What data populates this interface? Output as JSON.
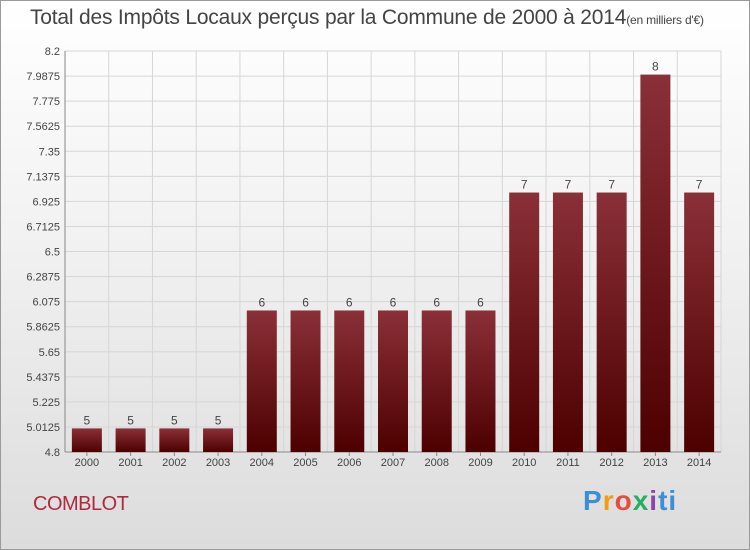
{
  "title": "Total des Impôts Locaux perçus par la Commune de 2000 à 2014",
  "title_unit": "(en milliers d'€)",
  "commune": "COMBLOT",
  "logo": [
    "P",
    "r",
    "o",
    "x",
    "i",
    "ti"
  ],
  "colors": {
    "bar_top": "#8a3038",
    "bar_bottom": "#4d0000",
    "text": "#444444",
    "commune": "#b02a3e"
  },
  "chart_data": {
    "type": "bar",
    "title": "Total des Impôts Locaux perçus par la Commune de 2000 à 2014",
    "ylabel": "en milliers d'€",
    "categories": [
      "2000",
      "2001",
      "2002",
      "2003",
      "2004",
      "2005",
      "2006",
      "2007",
      "2008",
      "2009",
      "2010",
      "2011",
      "2012",
      "2013",
      "2014"
    ],
    "values": [
      5,
      5,
      5,
      5,
      6,
      6,
      6,
      6,
      6,
      6,
      7,
      7,
      7,
      8,
      7
    ],
    "ylim": [
      4.8,
      8.2
    ],
    "yticks": [
      "8.2",
      "7.9875",
      "7.775",
      "7.5625",
      "7.35",
      "7.1375",
      "6.925",
      "6.7125",
      "6.5",
      "6.2875",
      "6.075",
      "5.8625",
      "5.65",
      "5.4375",
      "5.225",
      "5.0125",
      "4.8"
    ],
    "grid": true
  }
}
